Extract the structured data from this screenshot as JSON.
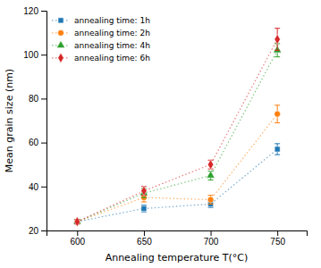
{
  "chart_data": {
    "type": "line",
    "xlabel": "Annealing temperature T(°C)",
    "ylabel": "Mean grain size (nm)",
    "x": [
      600,
      650,
      700,
      750
    ],
    "series": [
      {
        "name": "annealing time: 1h",
        "values": [
          24,
          30,
          32,
          57
        ],
        "errors": [
          1.0,
          1.5,
          1.5,
          2.5
        ],
        "marker": "square",
        "line_style": "dotted"
      },
      {
        "name": "annealing time: 2h",
        "values": [
          24,
          35,
          34,
          73
        ],
        "errors": [
          1.0,
          2.0,
          2.0,
          4.0
        ],
        "marker": "circle",
        "line_style": "dotted"
      },
      {
        "name": "annealing time: 4h",
        "values": [
          24,
          37,
          45,
          102
        ],
        "errors": [
          1.0,
          2.0,
          2.0,
          3.0
        ],
        "marker": "triangle",
        "line_style": "dotted"
      },
      {
        "name": "annealing time: 6h",
        "values": [
          24,
          38,
          50,
          107
        ],
        "errors": [
          1.0,
          2.0,
          2.0,
          5.0
        ],
        "marker": "diamond",
        "line_style": "dotted"
      }
    ],
    "xlim": [
      577,
      772
    ],
    "ylim": [
      20,
      120
    ],
    "xticks": [
      600,
      650,
      700,
      750
    ],
    "yticks": [
      20,
      40,
      60,
      80,
      100,
      120
    ],
    "legend": "upper left",
    "grid": false
  }
}
